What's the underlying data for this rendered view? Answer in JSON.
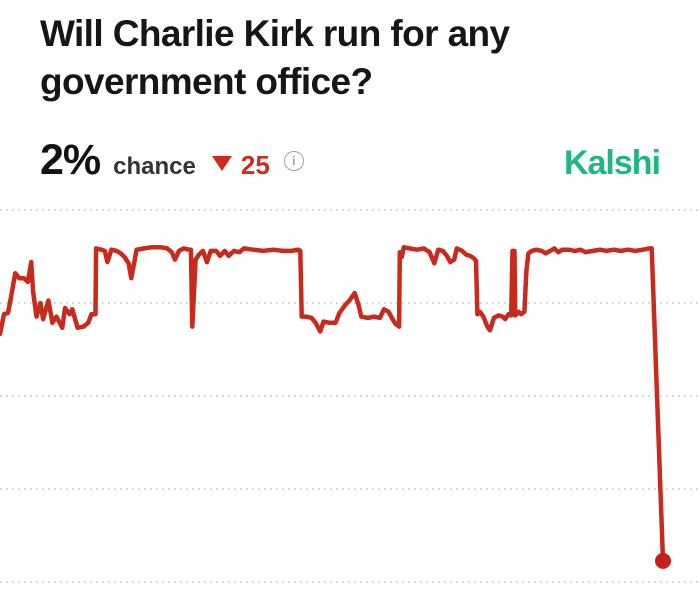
{
  "header": {
    "title_lines": [
      "Will Charlie Kirk run for any",
      "government office?"
    ],
    "title_full": "Will Charlie Kirk run for any government office?",
    "price": "2%",
    "price_label": "chance",
    "change": {
      "direction": "down",
      "value": "25",
      "color": "#c92d22"
    },
    "icons": {
      "change_icon": "triangle-down",
      "info_icon": "circled-i",
      "info_glyph": "i"
    }
  },
  "brand": {
    "name": "Kalshi",
    "color": "#1eb87e"
  },
  "chart_data": {
    "type": "line",
    "series_name": "chance",
    "title": "",
    "xlabel": "",
    "ylabel": "",
    "ylim": [
      0,
      30
    ],
    "gridline_values": [
      0,
      7.5,
      15,
      22.5,
      30
    ],
    "grid": "dotted-horizontal",
    "legend": "none",
    "line_color": "#c62b1d",
    "dot_color": "#c6201a",
    "end_dot": true,
    "x_range": [
      0,
      100
    ],
    "points": [
      [
        0,
        20.0
      ],
      [
        0.6,
        21.6
      ],
      [
        1.2,
        21.7
      ],
      [
        1.7,
        23.1
      ],
      [
        2.3,
        24.9
      ],
      [
        2.9,
        24.5
      ],
      [
        3.6,
        24.5
      ],
      [
        4.2,
        24.2
      ],
      [
        4.7,
        25.8
      ],
      [
        5.0,
        23.4
      ],
      [
        5.5,
        21.4
      ],
      [
        6.1,
        22.5
      ],
      [
        6.5,
        21.2
      ],
      [
        7.3,
        22.7
      ],
      [
        7.9,
        20.9
      ],
      [
        8.5,
        21.4
      ],
      [
        9.4,
        20.5
      ],
      [
        9.8,
        22.1
      ],
      [
        10.5,
        21.6
      ],
      [
        10.9,
        22.0
      ],
      [
        11.7,
        20.5
      ],
      [
        12.6,
        20.6
      ],
      [
        13.3,
        20.9
      ],
      [
        13.8,
        21.6
      ],
      [
        14.4,
        21.6
      ],
      [
        14.5,
        26.9
      ],
      [
        15.3,
        26.8
      ],
      [
        15.8,
        26.7
      ],
      [
        16.2,
        25.8
      ],
      [
        16.8,
        26.8
      ],
      [
        17.6,
        26.7
      ],
      [
        18.2,
        26.5
      ],
      [
        18.8,
        26.2
      ],
      [
        19.4,
        25.7
      ],
      [
        19.8,
        24.5
      ],
      [
        20.6,
        26.8
      ],
      [
        21.7,
        26.9
      ],
      [
        23.0,
        27.0
      ],
      [
        24.2,
        27.0
      ],
      [
        25.2,
        26.9
      ],
      [
        25.9,
        26.6
      ],
      [
        26.4,
        26.0
      ],
      [
        27.0,
        26.7
      ],
      [
        27.7,
        26.9
      ],
      [
        28.5,
        26.8
      ],
      [
        28.8,
        26.8
      ],
      [
        29.0,
        20.6
      ],
      [
        29.5,
        26.0
      ],
      [
        30.0,
        26.4
      ],
      [
        30.6,
        26.7
      ],
      [
        31.2,
        25.8
      ],
      [
        31.8,
        26.7
      ],
      [
        32.6,
        26.7
      ],
      [
        33.2,
        26.3
      ],
      [
        33.9,
        26.7
      ],
      [
        34.5,
        26.3
      ],
      [
        35.3,
        26.7
      ],
      [
        36.1,
        26.6
      ],
      [
        36.8,
        26.9
      ],
      [
        38.2,
        26.8
      ],
      [
        39.7,
        26.7
      ],
      [
        41.2,
        26.8
      ],
      [
        42.7,
        26.7
      ],
      [
        43.9,
        26.7
      ],
      [
        45.0,
        26.8
      ],
      [
        45.3,
        26.7
      ],
      [
        45.5,
        21.4
      ],
      [
        46.2,
        21.4
      ],
      [
        47.0,
        21.3
      ],
      [
        47.6,
        20.9
      ],
      [
        48.3,
        20.2
      ],
      [
        48.8,
        21.0
      ],
      [
        49.7,
        20.9
      ],
      [
        50.6,
        20.9
      ],
      [
        51.2,
        21.7
      ],
      [
        52.0,
        22.3
      ],
      [
        52.7,
        22.7
      ],
      [
        53.5,
        23.3
      ],
      [
        54.1,
        22.3
      ],
      [
        54.5,
        21.4
      ],
      [
        55.5,
        21.3
      ],
      [
        56.4,
        21.4
      ],
      [
        57.3,
        21.3
      ],
      [
        57.9,
        22.0
      ],
      [
        58.6,
        21.8
      ],
      [
        59.2,
        21.2
      ],
      [
        59.7,
        20.8
      ],
      [
        60.2,
        20.6
      ],
      [
        60.3,
        26.6
      ],
      [
        60.6,
        26.2
      ],
      [
        60.9,
        27.0
      ],
      [
        61.8,
        26.9
      ],
      [
        62.9,
        26.8
      ],
      [
        63.9,
        26.9
      ],
      [
        64.8,
        26.6
      ],
      [
        65.5,
        25.7
      ],
      [
        66.1,
        26.8
      ],
      [
        66.8,
        26.7
      ],
      [
        67.4,
        26.3
      ],
      [
        67.9,
        25.8
      ],
      [
        68.5,
        26.0
      ],
      [
        68.9,
        26.9
      ],
      [
        69.7,
        26.7
      ],
      [
        70.3,
        26.4
      ],
      [
        70.9,
        26.3
      ],
      [
        71.5,
        26.1
      ],
      [
        71.8,
        25.9
      ],
      [
        72.0,
        21.6
      ],
      [
        72.4,
        21.8
      ],
      [
        72.9,
        21.4
      ],
      [
        73.5,
        20.6
      ],
      [
        73.9,
        20.3
      ],
      [
        74.5,
        21.3
      ],
      [
        75.2,
        21.5
      ],
      [
        75.8,
        21.4
      ],
      [
        76.2,
        21.2
      ],
      [
        76.7,
        21.6
      ],
      [
        77.1,
        21.5
      ],
      [
        77.3,
        26.7
      ],
      [
        77.6,
        26.7
      ],
      [
        77.7,
        21.5
      ],
      [
        78.2,
        21.8
      ],
      [
        78.6,
        21.6
      ],
      [
        79.1,
        21.8
      ],
      [
        79.4,
        25.1
      ],
      [
        79.7,
        26.5
      ],
      [
        80.2,
        26.7
      ],
      [
        80.9,
        26.8
      ],
      [
        81.7,
        26.7
      ],
      [
        82.3,
        26.5
      ],
      [
        83.0,
        26.7
      ],
      [
        83.6,
        26.9
      ],
      [
        84.2,
        26.6
      ],
      [
        84.8,
        26.8
      ],
      [
        85.8,
        26.8
      ],
      [
        86.7,
        26.7
      ],
      [
        87.6,
        26.8
      ],
      [
        88.3,
        26.6
      ],
      [
        89.4,
        26.7
      ],
      [
        90.5,
        26.8
      ],
      [
        91.5,
        26.7
      ],
      [
        92.6,
        26.8
      ],
      [
        93.6,
        26.7
      ],
      [
        94.7,
        26.8
      ],
      [
        95.8,
        26.7
      ],
      [
        97.0,
        26.8
      ],
      [
        97.9,
        26.9
      ],
      [
        98.3,
        26.9
      ],
      [
        100,
        1.7
      ]
    ]
  }
}
